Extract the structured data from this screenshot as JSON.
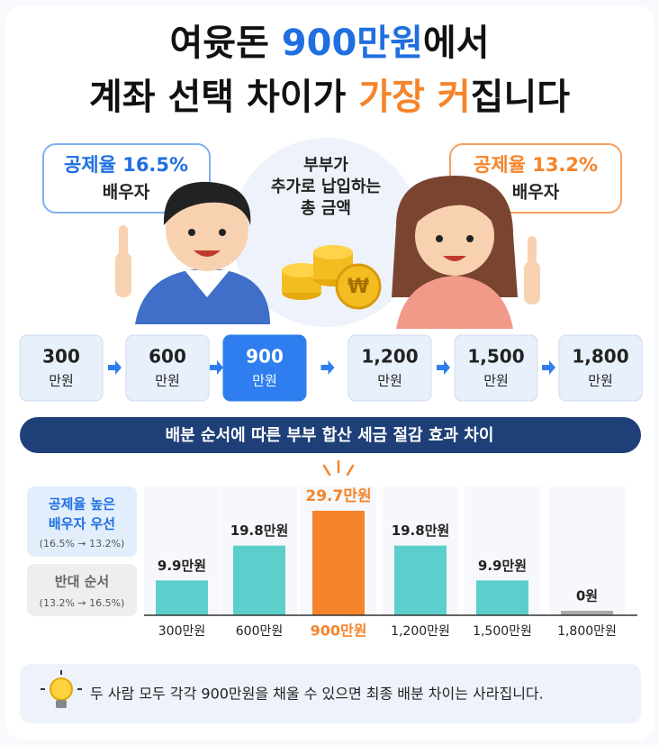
{
  "title": {
    "line1_pre": "여윳돈 ",
    "line1_highlight": "900만원",
    "line1_post": "에서",
    "line2_pre": "계좌 선택 차이가 ",
    "line2_highlight": "가장 커",
    "line2_post": "집니다"
  },
  "bubbles": [
    {
      "rate": "공제율 16.5%",
      "role": "배우자"
    },
    {
      "rate": "공제율 13.2%",
      "role": "배우자"
    }
  ],
  "center_note": [
    "부부가",
    "추가로 납입하는",
    "총 금액"
  ],
  "coin_symbol": "₩",
  "steps": [
    {
      "amount": "300",
      "unit": "만원"
    },
    {
      "amount": "600",
      "unit": "만원"
    },
    {
      "amount": "900",
      "unit": "만원"
    },
    {
      "amount": "1,200",
      "unit": "만원"
    },
    {
      "amount": "1,500",
      "unit": "만원"
    },
    {
      "amount": "1,800",
      "unit": "만원"
    }
  ],
  "banner": "배분 순서에 따른 부부 합산 세금 절감 효과 차이",
  "legend": [
    {
      "label": [
        "공제율 높은",
        "배우자 우선"
      ],
      "note": "(16.5% → 13.2%)"
    },
    {
      "label": [
        "반대 순서"
      ],
      "note": "(13.2% → 16.5%)"
    }
  ],
  "chart_data": {
    "type": "bar",
    "categories": [
      "300만원",
      "600만원",
      "900만원",
      "1,200만원",
      "1,500만원",
      "1,800만원"
    ],
    "values": [
      9.9,
      19.8,
      29.7,
      19.8,
      9.9,
      0
    ],
    "value_labels": [
      "9.9만원",
      "19.8만원",
      "29.7만원",
      "19.8만원",
      "9.9만원",
      "0원"
    ],
    "colors": [
      "#5ccfcc",
      "#5ccfcc",
      "#f5842a",
      "#5ccfcc",
      "#5ccfcc",
      "#a9a9a9"
    ],
    "label_colors": [
      "#222",
      "#222",
      "#f5842a",
      "#222",
      "#222",
      "#222"
    ]
  },
  "tip": "두 사람 모두 각각 900만원을 채울 수 있으면 최종 배분 차이는 사라집니다."
}
